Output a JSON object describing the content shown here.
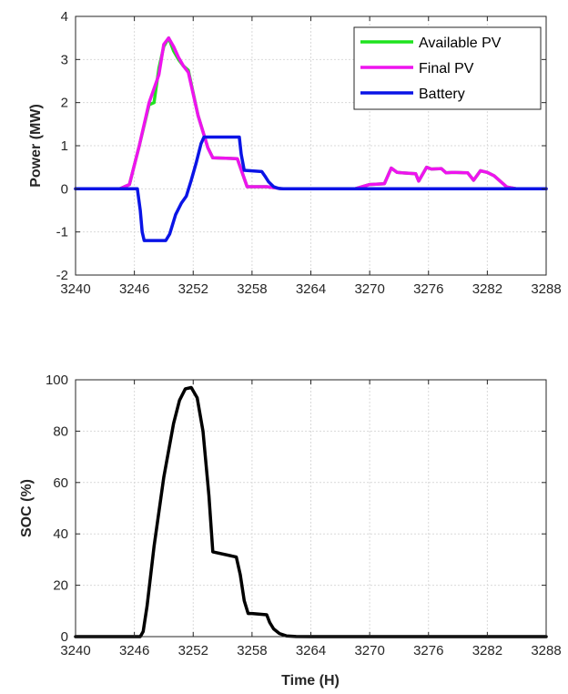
{
  "chart_data": [
    {
      "type": "line",
      "ylabel": "Power (MW)",
      "xlabel": "",
      "xlim": [
        3240,
        3288
      ],
      "ylim": [
        -2,
        4
      ],
      "xticks": [
        3240,
        3246,
        3252,
        3258,
        3264,
        3270,
        3276,
        3282,
        3288
      ],
      "yticks": [
        -2,
        -1,
        0,
        1,
        2,
        3,
        4
      ],
      "grid": true,
      "legend": "top-right",
      "series": [
        {
          "name": "Available PV",
          "color": "#1fe31f",
          "x": [
            3240,
            3244.5,
            3245.5,
            3246.5,
            3247.5,
            3248.0,
            3248.5,
            3249.0,
            3249.5,
            3250.0,
            3250.5,
            3251.0,
            3251.5,
            3252.5,
            3253.5,
            3254.0,
            3256.5,
            3257.5,
            3259.5,
            3260.5,
            3261,
            3264,
            3268.5,
            3270,
            3271.5,
            3272.2,
            3272.8,
            3273.3,
            3274.7,
            3275.0,
            3275.8,
            3276.3,
            3277.3,
            3277.8,
            3278.5,
            3280.0,
            3280.6,
            3281.3,
            3282.0,
            3282.7,
            3283.3,
            3284.0,
            3285,
            3288
          ],
          "y": [
            0,
            0,
            0.1,
            1.0,
            1.95,
            2.0,
            2.8,
            3.3,
            3.5,
            3.2,
            3.0,
            2.85,
            2.75,
            1.7,
            0.95,
            0.72,
            0.7,
            0.05,
            0.05,
            0.02,
            0,
            0,
            0,
            0.1,
            0.12,
            0.48,
            0.38,
            0.37,
            0.35,
            0.18,
            0.5,
            0.46,
            0.47,
            0.37,
            0.38,
            0.37,
            0.2,
            0.42,
            0.38,
            0.3,
            0.18,
            0.04,
            0,
            0
          ]
        },
        {
          "name": "Final PV",
          "color": "#ee14ee",
          "x": [
            3240,
            3244.5,
            3245.5,
            3246.5,
            3247.5,
            3248.5,
            3249.0,
            3249.5,
            3250.0,
            3250.5,
            3251.0,
            3251.5,
            3252.5,
            3253.5,
            3254.0,
            3256.5,
            3257.5,
            3259.5,
            3260.5,
            3261,
            3264,
            3268.5,
            3270,
            3271.5,
            3272.2,
            3272.8,
            3273.3,
            3274.7,
            3275.0,
            3275.8,
            3276.3,
            3277.3,
            3277.8,
            3278.5,
            3280.0,
            3280.6,
            3281.3,
            3282.0,
            3282.7,
            3283.3,
            3284.0,
            3285,
            3288
          ],
          "y": [
            0,
            0,
            0.1,
            1.0,
            2.0,
            2.65,
            3.35,
            3.5,
            3.3,
            3.05,
            2.85,
            2.7,
            1.7,
            0.95,
            0.72,
            0.7,
            0.05,
            0.05,
            0.02,
            0,
            0,
            0,
            0.1,
            0.12,
            0.48,
            0.38,
            0.37,
            0.35,
            0.18,
            0.5,
            0.46,
            0.47,
            0.37,
            0.38,
            0.37,
            0.2,
            0.42,
            0.38,
            0.3,
            0.18,
            0.04,
            0,
            0
          ]
        },
        {
          "name": "Battery",
          "color": "#0a14e6",
          "x": [
            3240,
            3246.3,
            3246.6,
            3246.8,
            3247.0,
            3249.2,
            3249.6,
            3250.2,
            3250.8,
            3251.3,
            3251.8,
            3252.3,
            3252.8,
            3253.1,
            3256.7,
            3256.9,
            3257.2,
            3259.0,
            3259.3,
            3259.7,
            3260.2,
            3260.7,
            3261.2,
            3262,
            3288
          ],
          "y": [
            0,
            0,
            -0.5,
            -1.0,
            -1.2,
            -1.2,
            -1.05,
            -0.6,
            -0.33,
            -0.17,
            0.2,
            0.6,
            1.05,
            1.2,
            1.2,
            0.8,
            0.43,
            0.4,
            0.3,
            0.16,
            0.05,
            0.01,
            0,
            0,
            0
          ]
        }
      ]
    },
    {
      "type": "line",
      "ylabel": "SOC (%)",
      "xlabel": "Time (H)",
      "xlim": [
        3240,
        3288
      ],
      "ylim": [
        0,
        100
      ],
      "xticks": [
        3240,
        3246,
        3252,
        3258,
        3264,
        3270,
        3276,
        3282,
        3288
      ],
      "yticks": [
        0,
        20,
        40,
        60,
        80,
        100
      ],
      "grid": true,
      "series": [
        {
          "color": "#000000",
          "x": [
            3240,
            3246.6,
            3246.9,
            3247.3,
            3248.0,
            3249.0,
            3250.0,
            3250.6,
            3251.2,
            3251.8,
            3252.4,
            3253.0,
            3253.6,
            3254.0,
            3256.4,
            3256.8,
            3257.2,
            3257.6,
            3258.0,
            3259.5,
            3259.8,
            3260.2,
            3260.8,
            3261.5,
            3262.5,
            3264,
            3288
          ],
          "y": [
            0,
            0,
            2,
            12,
            35,
            62,
            83,
            92,
            96.5,
            97,
            93,
            80,
            55,
            33,
            31,
            24,
            14,
            9,
            9,
            8.5,
            5.5,
            3,
            1.2,
            0.3,
            0.05,
            0,
            0
          ]
        }
      ]
    }
  ]
}
